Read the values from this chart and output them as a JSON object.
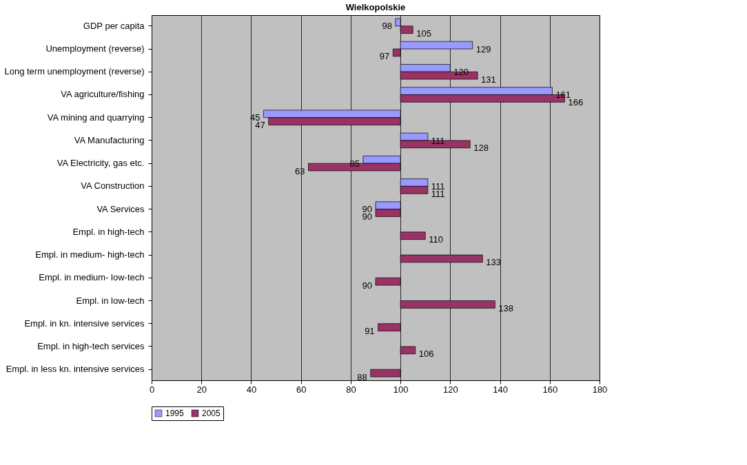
{
  "chart_data": {
    "type": "bar",
    "orientation": "horizontal",
    "title": "Wielkopolskie",
    "categories": [
      "GDP per capita",
      "Unemployment (reverse)",
      "Long term unemployment (reverse)",
      "VA agriculture/fishing",
      "VA mining and quarrying",
      "VA Manufacturing",
      "VA Electricity, gas etc.",
      "VA Construction",
      "VA Services",
      "Empl. in high-tech",
      "Empl. in medium- high-tech",
      "Empl. in medium- low-tech",
      "Empl. in low-tech",
      "Empl. in kn. intensive services",
      "Empl. in high-tech services",
      "Empl. in less kn. intensive services"
    ],
    "series": [
      {
        "name": "1995",
        "color": "#9999ff",
        "base": [
          100,
          100,
          100,
          100,
          100,
          100,
          100,
          100,
          100,
          null,
          null,
          null,
          null,
          null,
          null,
          null
        ],
        "values": [
          -2,
          29,
          20,
          61,
          -55,
          11,
          -15,
          11,
          -10,
          null,
          null,
          null,
          null,
          null,
          null,
          null
        ],
        "value_labels": [
          "98",
          "129",
          "120",
          "161",
          "45",
          "111",
          "85",
          "111",
          "90",
          null,
          null,
          null,
          null,
          null,
          null,
          null
        ]
      },
      {
        "name": "2005",
        "color": "#993366",
        "base": [
          100,
          100,
          100,
          100,
          100,
          100,
          100,
          100,
          100,
          100,
          100,
          100,
          100,
          100,
          100,
          100
        ],
        "values": [
          5,
          -3,
          31,
          66,
          -53,
          28,
          -37,
          11,
          -10,
          10,
          33,
          -10,
          38,
          -9,
          6,
          -12
        ],
        "value_labels": [
          "105",
          "97",
          "131",
          "166",
          "47",
          "128",
          "63",
          "111",
          "90",
          "110",
          "133",
          "90",
          "138",
          "91",
          "106",
          "88"
        ]
      }
    ],
    "xlim": [
      0,
      180
    ],
    "xticks": [
      0,
      20,
      40,
      60,
      80,
      100,
      120,
      140,
      160,
      180
    ],
    "grid": "x",
    "legend": "bottom"
  }
}
